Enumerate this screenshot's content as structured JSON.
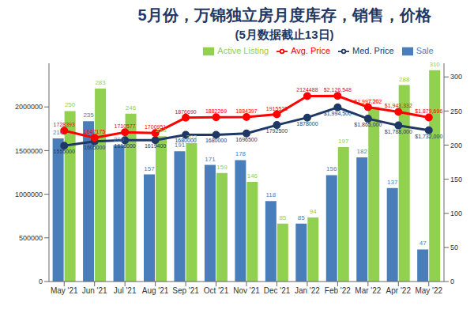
{
  "chart_data": {
    "type": "combo",
    "title": "5月份，万锦独立房月度库存，销售，价格",
    "subtitle": "(5月数据截止13日)",
    "categories": [
      "May '21",
      "Jun '21",
      "Jul '21",
      "Aug '21",
      "Sep '21",
      "Oct '21",
      "Nov '21",
      "Dec '21",
      "Jan '22",
      "Feb '22",
      "Mar '22",
      "Apr '22",
      "May '22"
    ],
    "ylim": [
      0,
      2500000
    ],
    "yticks": [
      0,
      500000,
      1000000,
      1500000,
      2000000
    ],
    "y2lim": [
      0,
      320
    ],
    "y2ticks": [
      0,
      50,
      100,
      150,
      200,
      250,
      300
    ],
    "legend": "top",
    "data_labels": true,
    "series": [
      {
        "name": "Sale",
        "type": "bar",
        "axis": "y2",
        "color": "#4a7ebb",
        "values": [
          210,
          235,
          200,
          157,
          191,
          171,
          178,
          118,
          85,
          156,
          182,
          137,
          47
        ]
      },
      {
        "name": "Active Listing",
        "type": "bar",
        "axis": "y2",
        "color": "#92d050",
        "values": [
          250,
          283,
          246,
          213,
          203,
          159,
          146,
          85,
          94,
          197,
          256,
          288,
          310
        ]
      },
      {
        "name": "Med. Price",
        "type": "line",
        "marker": "circle",
        "color": "#1f3864",
        "values": [
          1555000,
          1605000,
          1618000,
          1619400,
          1680000,
          1680000,
          1696500,
          1792500,
          1878000,
          1994500,
          1865000,
          1788000,
          1732000
        ],
        "value_labels": [
          "1555000",
          "1605000",
          "1618000",
          "1619400",
          "1680000",
          "1680000",
          "1696500",
          "1792500",
          "1878000",
          "$1,994,500",
          "$1,865,000",
          "$1,788,000",
          "$1,732,000"
        ]
      },
      {
        "name": "Avg. Price",
        "type": "line",
        "marker": "circle",
        "color": "#ff0000",
        "values": [
          1728393,
          1647175,
          1710577,
          1700951,
          1876690,
          1882269,
          1884397,
          1915528,
          2124488,
          2126548,
          1997202,
          1943332,
          1879696
        ],
        "value_labels": [
          "1728393",
          "1647175",
          "1710577",
          "1700951",
          "1876690",
          "1882269",
          "1884397",
          "1915528",
          "2124488",
          "$2,126,548",
          "$1,997,202",
          "$1,943,332",
          "$1,879,696"
        ]
      }
    ]
  }
}
